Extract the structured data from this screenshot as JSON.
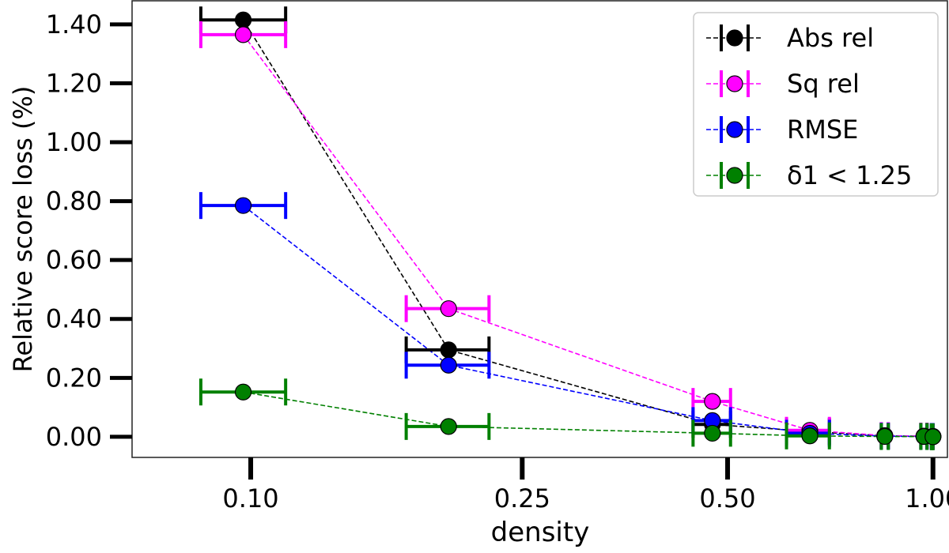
{
  "chart_data": {
    "type": "line",
    "title": "",
    "xlabel": "density",
    "ylabel": "Relative score loss (%)",
    "x_scale": "log",
    "xlim": [
      0.067,
      1.05
    ],
    "ylim": [
      -0.07,
      1.48
    ],
    "x_ticks": [
      {
        "value": 0.1,
        "label": "0.10"
      },
      {
        "value": 0.25,
        "label": "0.25"
      },
      {
        "value": 0.5,
        "label": "0.50"
      },
      {
        "value": 1.0,
        "label": "1.00"
      }
    ],
    "y_ticks": [
      {
        "value": 0.0,
        "label": "0.00"
      },
      {
        "value": 0.2,
        "label": "0.20"
      },
      {
        "value": 0.4,
        "label": "0.40"
      },
      {
        "value": 0.6,
        "label": "0.60"
      },
      {
        "value": 0.8,
        "label": "0.80"
      },
      {
        "value": 1.0,
        "label": "1.00"
      },
      {
        "value": 1.2,
        "label": "1.20"
      },
      {
        "value": 1.4,
        "label": "1.40"
      }
    ],
    "legend_position": "top-right",
    "series": [
      {
        "name": "Abs rel",
        "color": "#000000",
        "x": [
          0.0975,
          0.195,
          0.475,
          0.66,
          0.85,
          0.97,
          1.0
        ],
        "xerr": [
          [
            0.0845,
            0.1125
          ],
          [
            0.169,
            0.2235
          ],
          [
            0.445,
            0.505
          ],
          [
            0.61,
            0.705
          ],
          [
            0.84,
            0.86
          ],
          [
            0.96,
            0.98
          ],
          [
            0.995,
            1.0
          ]
        ],
        "y": [
          1.415,
          0.295,
          0.042,
          0.018,
          0.003,
          0.002,
          0.001
        ]
      },
      {
        "name": "Sq rel",
        "color": "#ff00ff",
        "x": [
          0.0975,
          0.195,
          0.475,
          0.66,
          0.85,
          0.97,
          1.0
        ],
        "xerr": [
          [
            0.0845,
            0.1125
          ],
          [
            0.169,
            0.2235
          ],
          [
            0.445,
            0.505
          ],
          [
            0.61,
            0.705
          ],
          [
            0.84,
            0.86
          ],
          [
            0.96,
            0.98
          ],
          [
            0.995,
            1.0
          ]
        ],
        "y": [
          1.365,
          0.435,
          0.12,
          0.022,
          0.004,
          0.002,
          0.001
        ]
      },
      {
        "name": "RMSE",
        "color": "#0000ff",
        "x": [
          0.0975,
          0.195,
          0.475,
          0.66,
          0.85,
          0.97,
          1.0
        ],
        "xerr": [
          [
            0.0845,
            0.1125
          ],
          [
            0.169,
            0.2235
          ],
          [
            0.445,
            0.505
          ],
          [
            0.61,
            0.705
          ],
          [
            0.84,
            0.86
          ],
          [
            0.96,
            0.98
          ],
          [
            0.995,
            1.0
          ]
        ],
        "y": [
          0.785,
          0.243,
          0.055,
          0.012,
          0.002,
          0.001,
          0.001
        ]
      },
      {
        "name": "δ1 < 1.25",
        "color": "#008000",
        "x": [
          0.0975,
          0.195,
          0.475,
          0.66,
          0.85,
          0.97,
          1.0
        ],
        "xerr": [
          [
            0.0845,
            0.1125
          ],
          [
            0.169,
            0.2235
          ],
          [
            0.445,
            0.505
          ],
          [
            0.61,
            0.705
          ],
          [
            0.84,
            0.86
          ],
          [
            0.96,
            0.98
          ],
          [
            0.995,
            1.0
          ]
        ],
        "y": [
          0.152,
          0.035,
          0.012,
          0.003,
          0.001,
          0.001,
          0.0
        ]
      }
    ]
  }
}
